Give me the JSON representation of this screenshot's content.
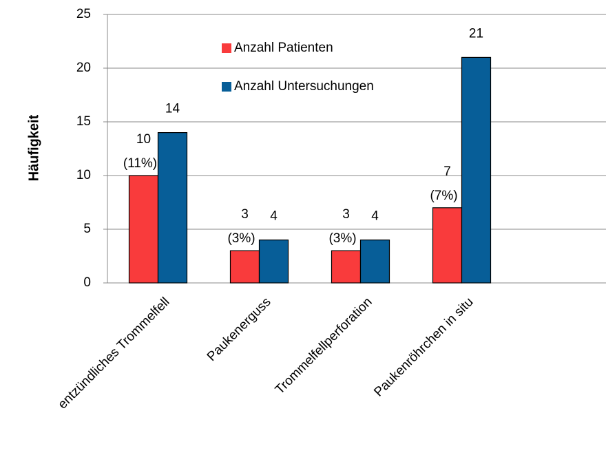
{
  "chart_data": {
    "type": "bar",
    "y_label": "Häufigkeit",
    "categories": [
      "entzündliches Trommelfell",
      "Paukenerguss",
      "Trommelfellperforation",
      "Paukenröhrchen in situ"
    ],
    "series": [
      {
        "name": "Anzahl Patienten",
        "color": "#f93b3c",
        "values": [
          10,
          3,
          3,
          7
        ],
        "percent_labels": [
          "(11%)",
          "(3%)",
          "(3%)",
          "(7%)"
        ]
      },
      {
        "name": "Anzahl Untersuchungen",
        "color": "#075e98",
        "values": [
          14,
          4,
          4,
          21
        ]
      }
    ],
    "ylim": [
      0,
      25
    ],
    "yticks": [
      0,
      5,
      10,
      15,
      20,
      25
    ],
    "grid": true
  }
}
